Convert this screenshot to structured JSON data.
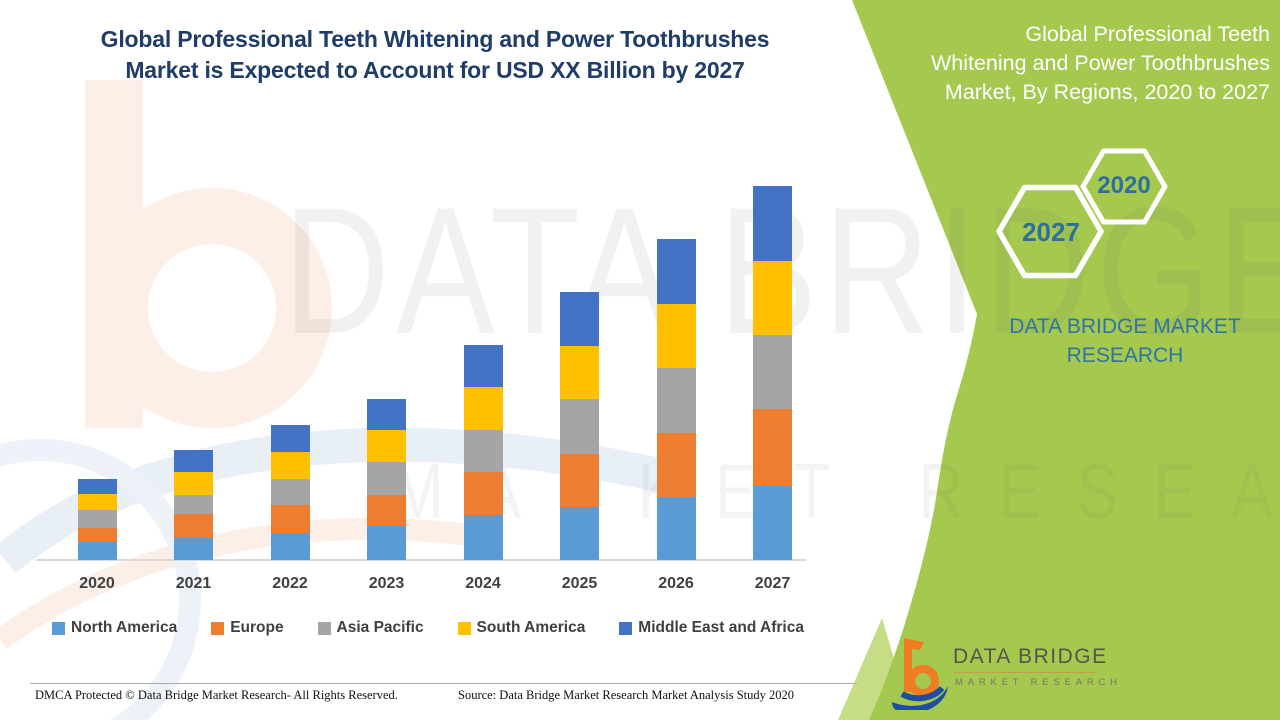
{
  "left_title": {
    "line1": "Global Professional Teeth Whitening and Power Toothbrushes",
    "line2": "Market is Expected to Account for USD XX Billion by 2027"
  },
  "right_panel": {
    "title_lines": [
      "Global Professional Teeth",
      "Whitening and Power Toothbrushes",
      "Market, By Regions, 2020 to 2027"
    ],
    "hex_back_year": "2020",
    "hex_front_year": "2027",
    "brand_line1": "DATA BRIDGE MARKET",
    "brand_line2": "RESEARCH"
  },
  "logo": {
    "title": "DATA BRIDGE",
    "subtitle": "MARKET RESEARCH"
  },
  "watermark": {
    "big_text": "DATA BRIDGE",
    "small_text": "MARKET RESEARCH"
  },
  "footer": {
    "dmca": "DMCA Protected © Data Bridge Market Research- All Rights Reserved.",
    "source": "Source: Data Bridge Market Research Market Analysis Study 2020"
  },
  "colors": {
    "green_panel": "#A5C84F",
    "green_light_accent": "#C6DC85",
    "title_navy": "#1F3D68",
    "hex_year_blue": "#2E6F9E",
    "brand_blue": "#2E75A4",
    "axis_text": "#404040",
    "axis_line": "#D9D9D9"
  },
  "chart_data": {
    "type": "bar",
    "stacked": true,
    "title": "Global Professional Teeth Whitening and Power Toothbrushes Market is Expected to Account for USD XX Billion by 2027",
    "subtitle": "Global Professional Teeth Whitening and Power Toothbrushes Market, By Regions, 2020 to 2027",
    "categories": [
      "2020",
      "2021",
      "2022",
      "2023",
      "2024",
      "2025",
      "2026",
      "2027"
    ],
    "series": [
      {
        "name": "North America",
        "color": "#5B9BD5",
        "values": [
          18.0,
          22.5,
          27.0,
          34.0,
          45.0,
          53.5,
          63.0,
          74.5
        ]
      },
      {
        "name": "Europe",
        "color": "#ED7D31",
        "values": [
          14.5,
          23.5,
          28.0,
          31.5,
          43.5,
          52.5,
          64.5,
          77.0
        ]
      },
      {
        "name": "Asia Pacific",
        "color": "#A5A5A5",
        "values": [
          17.5,
          19.0,
          26.0,
          32.5,
          41.5,
          55.0,
          65.0,
          74.0
        ]
      },
      {
        "name": "South America",
        "color": "#FFC000",
        "values": [
          16.5,
          23.5,
          27.0,
          32.0,
          43.5,
          53.0,
          64.0,
          74.0
        ]
      },
      {
        "name": "Middle East and Africa",
        "color": "#4472C4",
        "values": [
          15.0,
          21.5,
          27.0,
          31.5,
          42.0,
          54.0,
          65.0,
          74.5
        ]
      }
    ],
    "totals_estimated": [
      81.5,
      110.0,
      135.0,
      161.5,
      215.5,
      268.0,
      321.5,
      374.0
    ],
    "units": "relative estimated units (actual values undisclosed: USD XX Billion)",
    "xlabel": "",
    "ylabel": "",
    "value_axis_visible": false,
    "gridlines": false,
    "legend_position": "bottom"
  }
}
